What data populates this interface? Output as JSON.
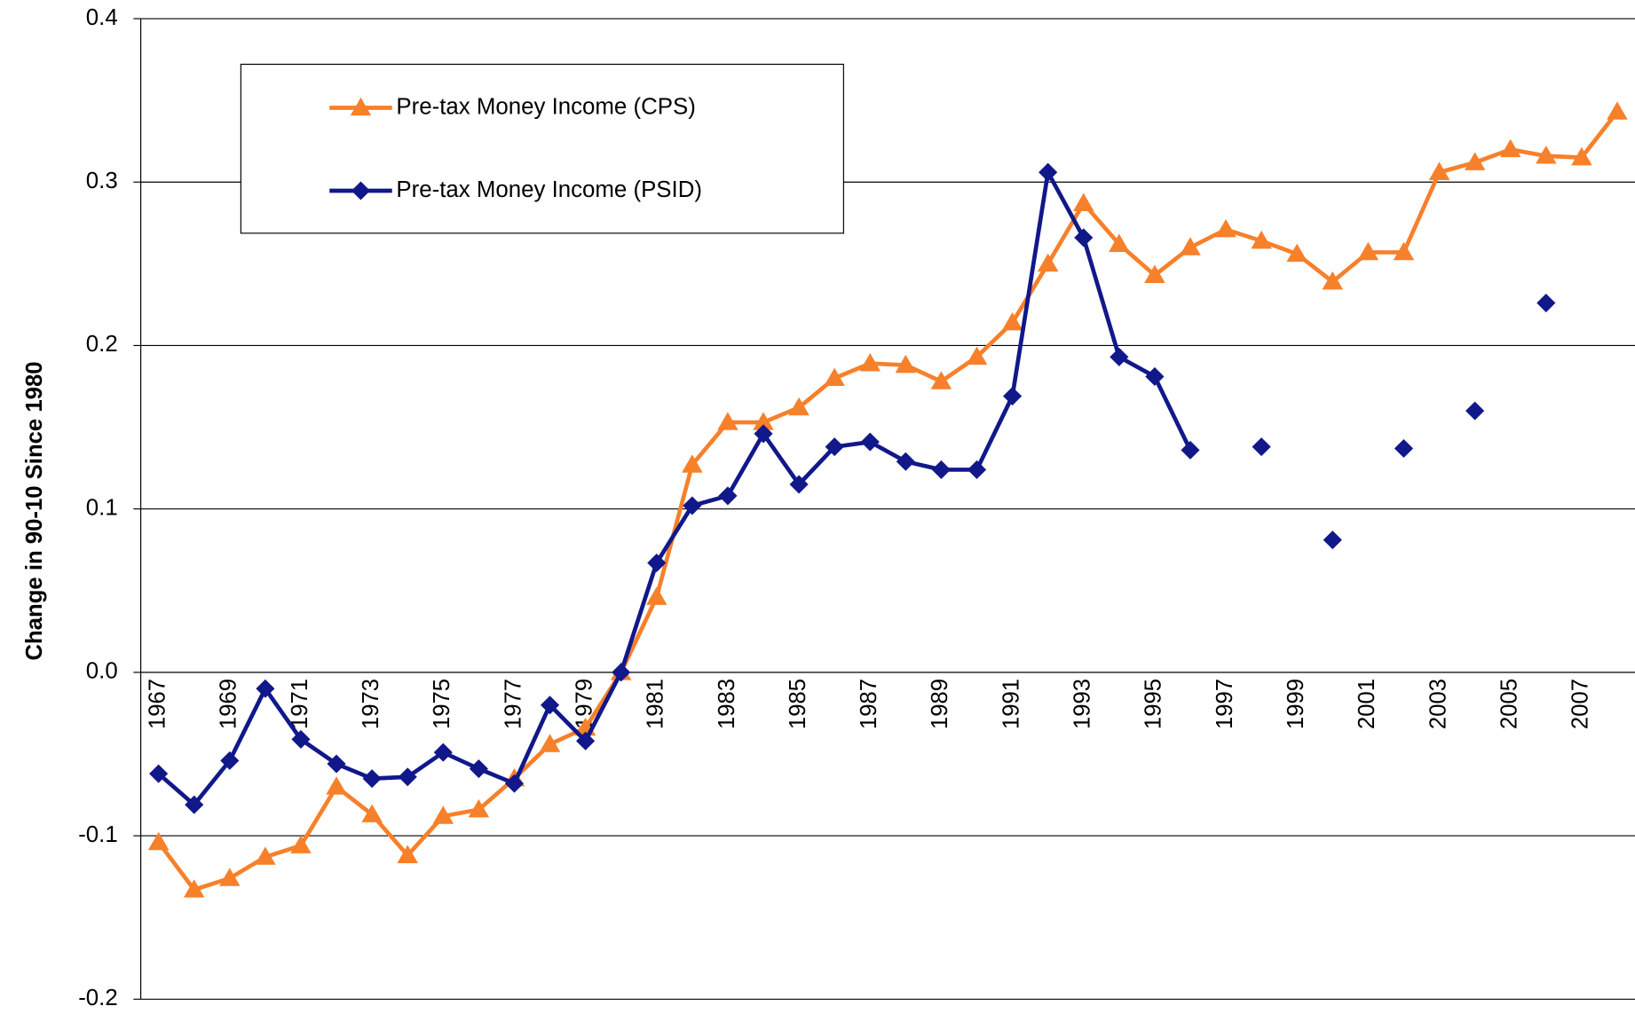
{
  "chart_data": {
    "type": "line",
    "y_label": "Change in 90-10 Since 1980",
    "categories": [
      "1967",
      null,
      "1969",
      null,
      "1971",
      null,
      "1973",
      null,
      "1975",
      null,
      "1977",
      null,
      "1979",
      null,
      "1981",
      null,
      "1983",
      null,
      "1985",
      null,
      "1987",
      null,
      "1989",
      null,
      "1991",
      null,
      "1993",
      null,
      "1995",
      null,
      "1997",
      null,
      "1999",
      null,
      "2001",
      null,
      "2003",
      null,
      "2005",
      null,
      "2007",
      null
    ],
    "series": [
      {
        "name": "Pre-tax Money Income (CPS)",
        "color": "#f7802a",
        "marker": "triangle",
        "values": [
          -0.104,
          -0.133,
          -0.126,
          -0.113,
          -0.106,
          -0.07,
          -0.087,
          -0.112,
          -0.088,
          -0.084,
          -0.065,
          -0.044,
          -0.034,
          0,
          0.046,
          0.127,
          0.153,
          0.153,
          0.162,
          0.18,
          0.189,
          0.188,
          0.178,
          0.193,
          0.214,
          0.25,
          0.287,
          0.262,
          0.243,
          0.26,
          0.271,
          0.264,
          0.256,
          0.239,
          0.257,
          0.257,
          0.306,
          0.312,
          0.32,
          0.316,
          0.315,
          0.343
        ]
      },
      {
        "name": "Pre-tax Money Income (PSID)",
        "color": "#10188a",
        "marker": "diamond",
        "values": [
          -0.062,
          -0.081,
          -0.054,
          -0.01,
          -0.041,
          -0.056,
          -0.065,
          -0.064,
          -0.049,
          -0.059,
          -0.068,
          -0.02,
          -0.042,
          0,
          0.067,
          0.102,
          0.108,
          0.146,
          0.115,
          0.138,
          0.141,
          0.129,
          0.124,
          0.124,
          0.169,
          0.306,
          0.266,
          0.193,
          0.181,
          0.136,
          null,
          0.138,
          null,
          0.081,
          null,
          0.137,
          null,
          0.16,
          null,
          0.226,
          null,
          null
        ]
      }
    ],
    "ylim": [
      -0.2,
      0.4
    ],
    "yticks": [
      0.4,
      0.3,
      0.2,
      0.1,
      {
        "value": 0,
        "label": "0.0"
      },
      -0.1,
      -0.2
    ],
    "grid": true
  }
}
